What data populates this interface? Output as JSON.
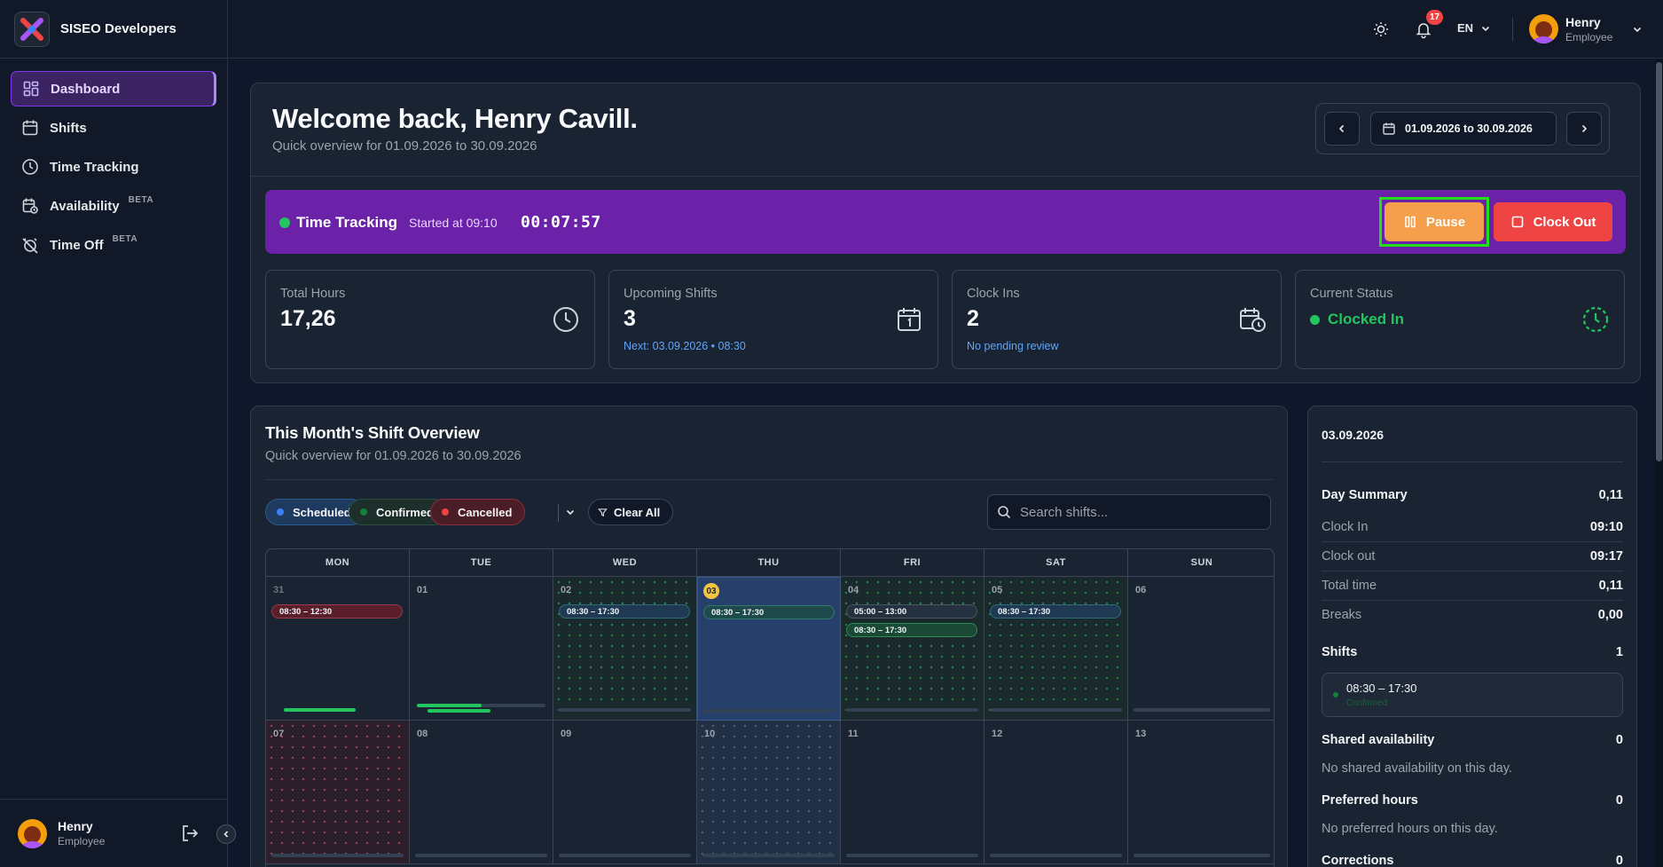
{
  "brand": {
    "name": "SISEO Developers"
  },
  "nav": {
    "items": [
      {
        "label": "Dashboard",
        "icon": "grid-icon"
      },
      {
        "label": "Shifts",
        "icon": "calendar-icon"
      },
      {
        "label": "Time Tracking",
        "icon": "clock-icon"
      },
      {
        "label": "Availability",
        "icon": "calendar-clock-icon",
        "badge": "BETA"
      },
      {
        "label": "Time Off",
        "icon": "alarm-off-icon",
        "badge": "BETA"
      }
    ]
  },
  "user": {
    "name": "Henry",
    "role": "Employee"
  },
  "topbar": {
    "notifications": "17",
    "language": "EN"
  },
  "welcome": {
    "title": "Welcome back, Henry Cavill.",
    "subtitle": "Quick overview for 01.09.2026 to 30.09.2026",
    "range": "01.09.2026 to 30.09.2026"
  },
  "tracker": {
    "title": "Time Tracking",
    "started": "Started at 09:10",
    "timer": "00:07:57",
    "pause_label": "Pause",
    "clockout_label": "Clock Out"
  },
  "stats": [
    {
      "label": "Total Hours",
      "value": "17,26",
      "note": ""
    },
    {
      "label": "Upcoming Shifts",
      "value": "3",
      "note": "Next: 03.09.2026 • 08:30"
    },
    {
      "label": "Clock Ins",
      "value": "2",
      "note": "No pending review"
    },
    {
      "label": "Current Status",
      "value": "Clocked In",
      "note": ""
    }
  ],
  "overview": {
    "title": "This Month's Shift Overview",
    "subtitle": "Quick overview for 01.09.2026 to 30.09.2026",
    "filters": [
      "Scheduled",
      "Confirmed",
      "Cancelled"
    ],
    "clear_label": "Clear All",
    "search_placeholder": "Search shifts...",
    "weekdays": [
      "MON",
      "TUE",
      "WED",
      "THU",
      "FRI",
      "SAT",
      "SUN"
    ],
    "week1": [
      "31",
      "01",
      "02",
      "03",
      "04",
      "05",
      "06"
    ],
    "week2": [
      "07",
      "08",
      "09",
      "10",
      "11",
      "12",
      "13"
    ],
    "shifts": {
      "mon": "08:30 – 12:30",
      "wed": "08:30 – 17:30",
      "thu": "08:30 – 17:30",
      "fri_a": "05:00 – 13:00",
      "fri_b": "08:30 – 17:30",
      "sat": "08:30 – 17:30"
    }
  },
  "day": {
    "date": "03.09.2026",
    "summary_label": "Day Summary",
    "summary_value": "0,11",
    "rows": [
      {
        "k": "Clock In",
        "v": "09:10"
      },
      {
        "k": "Clock out",
        "v": "09:17"
      },
      {
        "k": "Total time",
        "v": "0,11"
      },
      {
        "k": "Breaks",
        "v": "0,00"
      }
    ],
    "shifts_label": "Shifts",
    "shifts_count": "1",
    "shift_time": "08:30 – 17:30",
    "shift_status": "Confirmed",
    "shared_label": "Shared availability",
    "shared_count": "0",
    "shared_note": "No shared availability on this day.",
    "preferred_label": "Preferred hours",
    "preferred_count": "0",
    "preferred_note": "No preferred hours on this day.",
    "corrections_label": "Corrections",
    "corrections_count": "0"
  },
  "colors": {
    "accent": "#6b21a8",
    "pause": "#f59e4b",
    "clockout": "#ef4444",
    "success": "#22c55e",
    "link": "#60a5fa"
  }
}
